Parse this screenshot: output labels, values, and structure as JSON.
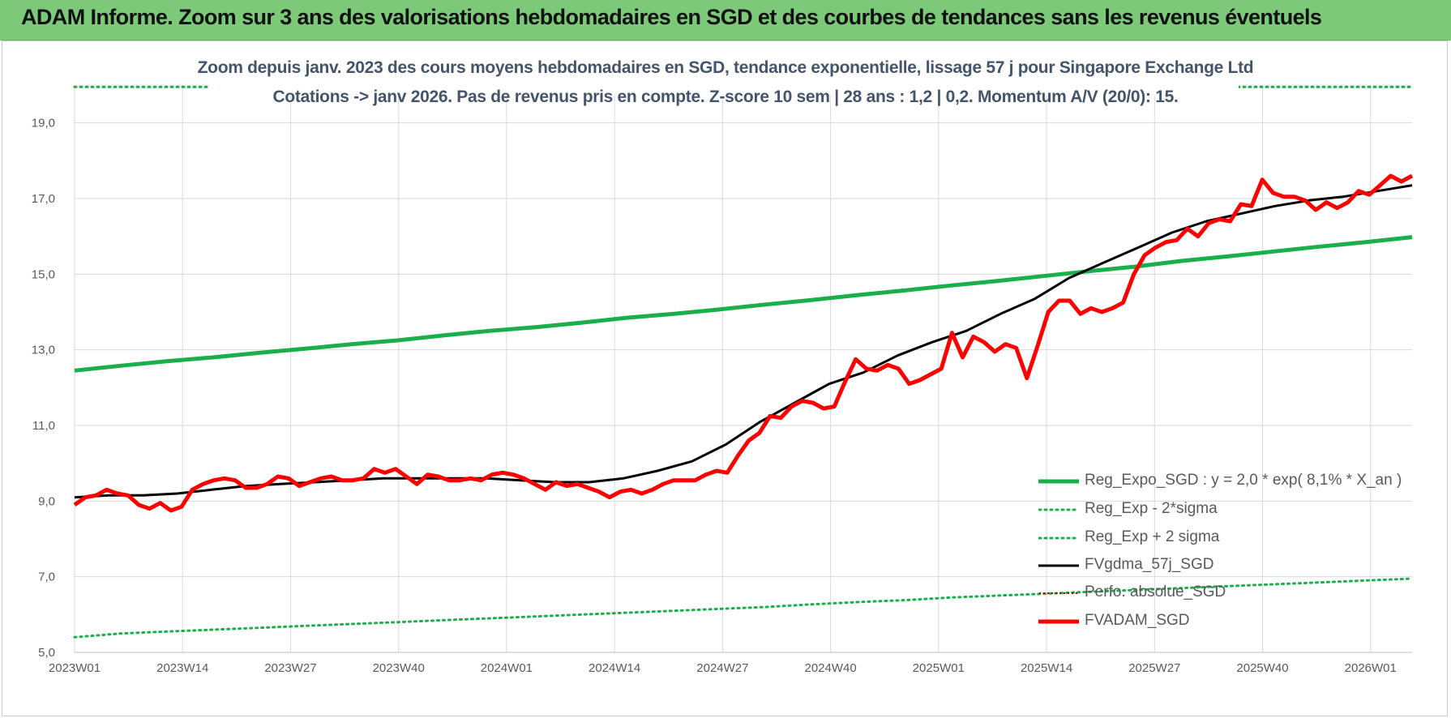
{
  "header": {
    "title": "ADAM Informe. Zoom sur 3 ans des valorisations hebdomadaires en SGD et des courbes de tendances sans les revenus éventuels"
  },
  "chart_data": {
    "type": "line",
    "title_line1": "Zoom depuis janv. 2023 des cours moyens hebdomadaires en SGD, tendance exponentielle, lissage 57 j pour Singapore Exchange Ltd",
    "title_line2": "Cotations -> janv 2026. Pas de revenus pris en compte. Z-score 10 sem | 28 ans : 1,2 | 0,2. Momentum A/V (20/0): 15.",
    "ylim": [
      5.0,
      20.0
    ],
    "y_ticks": [
      "5,0",
      "7,0",
      "9,0",
      "11,0",
      "13,0",
      "15,0",
      "17,0",
      "19,0"
    ],
    "y_tick_values": [
      5,
      7,
      9,
      11,
      13,
      15,
      17,
      19
    ],
    "x_ticks": [
      "2023W01",
      "2023W14",
      "2023W27",
      "2023W40",
      "2024W01",
      "2024W14",
      "2024W27",
      "2024W40",
      "2025W01",
      "2025W14",
      "2025W27",
      "2025W40",
      "2026W01"
    ],
    "x_tick_index": [
      0,
      13,
      26,
      39,
      52,
      65,
      78,
      91,
      104,
      117,
      130,
      143,
      156
    ],
    "x_count": 162,
    "grid": true,
    "legend_position": "bottom-right",
    "series": [
      {
        "name": "Reg_Expo_SGD : y = 2,0 * exp( 8,1% * X_an )",
        "color": "#1aaf4b",
        "style": "solid-thick",
        "values": [
          12.45,
          12.58,
          12.7,
          12.8,
          12.92,
          13.03,
          13.15,
          13.25,
          13.38,
          13.5,
          13.6,
          13.72,
          13.85,
          13.95,
          14.07,
          14.2,
          14.32,
          14.45,
          14.57,
          14.7,
          14.82,
          14.95,
          15.08,
          15.2,
          15.35,
          15.47,
          15.6,
          15.73,
          15.85,
          15.98
        ]
      },
      {
        "name": "Reg_Exp - 2*sigma",
        "color": "#1aaf4b",
        "style": "dotted",
        "values": [
          5.4,
          5.5,
          5.55,
          5.6,
          5.65,
          5.7,
          5.75,
          5.8,
          5.85,
          5.9,
          5.95,
          6.0,
          6.05,
          6.1,
          6.15,
          6.2,
          6.27,
          6.33,
          6.38,
          6.45,
          6.5,
          6.55,
          6.6,
          6.65,
          6.7,
          6.75,
          6.8,
          6.85,
          6.9,
          6.95
        ]
      },
      {
        "name": "Reg_Exp + 2 sigma",
        "color": "#1aaf4b",
        "style": "dotted",
        "values": [
          19.95,
          19.95
        ]
      },
      {
        "name": "FVgdma_57j_SGD",
        "color": "#000000",
        "style": "solid",
        "values": [
          9.1,
          9.15,
          9.15,
          9.2,
          9.3,
          9.4,
          9.45,
          9.5,
          9.55,
          9.6,
          9.6,
          9.6,
          9.6,
          9.55,
          9.5,
          9.5,
          9.6,
          9.8,
          10.05,
          10.5,
          11.1,
          11.6,
          12.1,
          12.4,
          12.85,
          13.2,
          13.5,
          13.95,
          14.35,
          14.9,
          15.3,
          15.7,
          16.1,
          16.4,
          16.6,
          16.8,
          16.95,
          17.05,
          17.2,
          17.35
        ]
      },
      {
        "name": "Perfo. absolue_SGD",
        "color": "#c00000",
        "style": "dotted-thin",
        "values": []
      },
      {
        "name": "FVADAM_SGD",
        "color": "#ff0000",
        "style": "solid-thick",
        "values": [
          8.9,
          9.1,
          9.15,
          9.3,
          9.2,
          9.15,
          8.9,
          8.8,
          8.95,
          8.75,
          8.85,
          9.3,
          9.45,
          9.55,
          9.6,
          9.55,
          9.35,
          9.35,
          9.45,
          9.65,
          9.6,
          9.4,
          9.5,
          9.6,
          9.65,
          9.55,
          9.55,
          9.6,
          9.85,
          9.75,
          9.85,
          9.65,
          9.45,
          9.7,
          9.65,
          9.55,
          9.55,
          9.6,
          9.55,
          9.7,
          9.75,
          9.7,
          9.6,
          9.45,
          9.3,
          9.5,
          9.4,
          9.45,
          9.35,
          9.25,
          9.1,
          9.25,
          9.3,
          9.2,
          9.3,
          9.45,
          9.55,
          9.55,
          9.55,
          9.7,
          9.8,
          9.75,
          10.2,
          10.6,
          10.8,
          11.25,
          11.2,
          11.5,
          11.65,
          11.6,
          11.45,
          11.5,
          12.15,
          12.75,
          12.5,
          12.45,
          12.6,
          12.5,
          12.1,
          12.2,
          12.35,
          12.5,
          13.45,
          12.8,
          13.35,
          13.2,
          12.95,
          13.15,
          13.05,
          12.25,
          13.1,
          14.0,
          14.3,
          14.3,
          13.95,
          14.1,
          14.0,
          14.1,
          14.25,
          15.0,
          15.5,
          15.7,
          15.85,
          15.9,
          16.2,
          16.0,
          16.35,
          16.45,
          16.4,
          16.85,
          16.8,
          17.5,
          17.15,
          17.05,
          17.05,
          16.95,
          16.7,
          16.9,
          16.75,
          16.9,
          17.2,
          17.1,
          17.35,
          17.6,
          17.45,
          17.6
        ]
      }
    ]
  }
}
